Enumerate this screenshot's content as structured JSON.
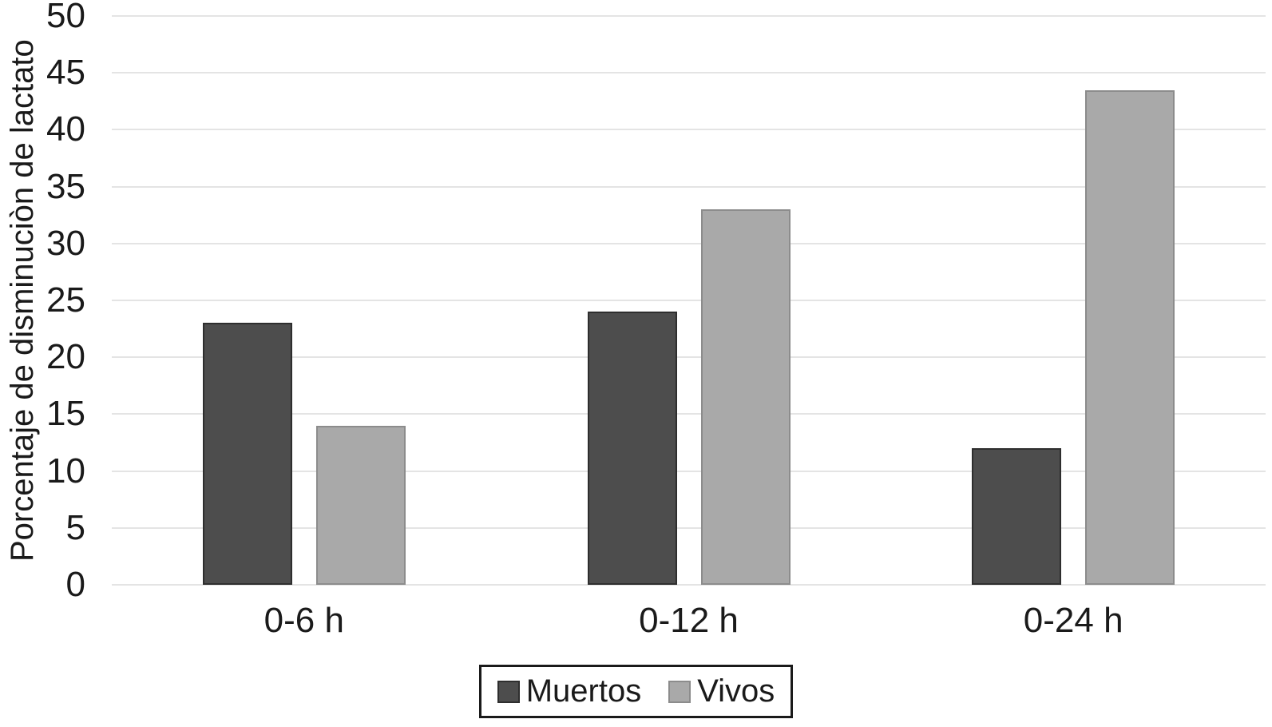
{
  "chart_data": {
    "type": "bar",
    "title": "",
    "ylabel": "Porcentaje de disminuciòn de lactato",
    "xlabel": "",
    "categories": [
      "0-6 h",
      "0-12 h",
      "0-24 h"
    ],
    "series": [
      {
        "name": "Muertos",
        "color": "#4d4d4d",
        "border_color": "#2e2e2e",
        "values": [
          23,
          24,
          12
        ]
      },
      {
        "name": "Vivos",
        "color": "#a9a9a9",
        "border_color": "#8c8c8c",
        "values": [
          14,
          33,
          43.5
        ]
      }
    ],
    "ylim": [
      0,
      50
    ],
    "ytick_step": 5,
    "yticks": [
      0,
      5,
      10,
      15,
      20,
      25,
      30,
      35,
      40,
      45,
      50
    ],
    "grid": true,
    "gridline_color": "#e4e4e4",
    "legend_position": "bottom",
    "background_color": "#ffffff"
  }
}
